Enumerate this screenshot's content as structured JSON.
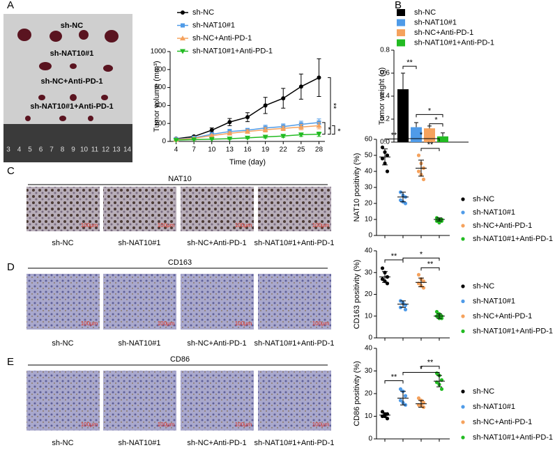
{
  "panels": [
    "A",
    "B",
    "C",
    "D",
    "E"
  ],
  "photo": {
    "labels": [
      "sh-NC",
      "sh-NAT10#1",
      "sh-NC+Anti-PD-1",
      "sh-NAT10#1+Anti-PD-1"
    ],
    "ruler": [
      "3",
      "4",
      "5",
      "6",
      "7",
      "8",
      "9",
      "10",
      "11",
      "12",
      "13",
      "14"
    ]
  },
  "images": [
    {
      "title": "NAT10",
      "labels": [
        "sh-NC",
        "sh-NAT10#1",
        "sh-NC+Anti-PD-1",
        "sh-NAT10#1+Anti-PD-1"
      ],
      "scale": "100μm"
    },
    {
      "title": "CD163",
      "labels": [
        "sh-NC",
        "sh-NAT10#1",
        "sh-NC+Anti-PD-1",
        "sh-NAT10#1+Anti-PD-1"
      ],
      "scale": "100μm"
    },
    {
      "title": "CD86",
      "labels": [
        "sh-NC",
        "sh-NAT10#1",
        "sh-NC+Anti-PD-1",
        "sh-NAT10#1+Anti-PD-1"
      ],
      "scale": "100μm"
    }
  ],
  "chart_data": [
    {
      "type": "line",
      "xlabel": "Time (day)",
      "ylabel": "Tumor volume (mm³)",
      "x": [
        4,
        7,
        10,
        13,
        16,
        19,
        22,
        25,
        28
      ],
      "xlim": [
        3,
        29
      ],
      "xticks": [
        4,
        7,
        10,
        13,
        16,
        19,
        22,
        25,
        28
      ],
      "ylim": [
        0,
        1000
      ],
      "yticks": [
        0,
        200,
        400,
        600,
        800,
        1000
      ],
      "series": [
        {
          "name": "sh-NC",
          "color": "#000000",
          "marker": "circle",
          "values": [
            30,
            55,
            125,
            215,
            270,
            400,
            480,
            610,
            710
          ],
          "errors": [
            5,
            10,
            25,
            40,
            50,
            90,
            110,
            140,
            210
          ]
        },
        {
          "name": "sh-NAT10#1",
          "color": "#4f9be8",
          "marker": "square",
          "values": [
            25,
            40,
            80,
            110,
            125,
            150,
            165,
            190,
            210
          ],
          "errors": [
            5,
            8,
            15,
            25,
            20,
            30,
            30,
            35,
            40
          ]
        },
        {
          "name": "sh-NC+Anti-PD-1",
          "color": "#f5a25d",
          "marker": "triangle",
          "values": [
            20,
            35,
            65,
            90,
            110,
            130,
            145,
            160,
            175
          ],
          "errors": [
            4,
            7,
            12,
            18,
            20,
            25,
            25,
            30,
            35
          ]
        },
        {
          "name": "sh-NAT10#1+Anti-PD-1",
          "color": "#22bb22",
          "marker": "down",
          "values": [
            15,
            20,
            25,
            30,
            40,
            50,
            60,
            75,
            80
          ],
          "errors": [
            3,
            4,
            5,
            8,
            10,
            12,
            15,
            20,
            25
          ]
        }
      ],
      "annotations": [
        "**",
        "*",
        "*"
      ]
    },
    {
      "type": "bar",
      "ylabel": "Tumor weight (g)",
      "ylim": [
        0,
        0.8
      ],
      "yticks": [
        {
          "value": 0,
          "label": "0.0"
        },
        0.2,
        0.4,
        0.6,
        0.8
      ],
      "series": [
        {
          "name": "sh-NC",
          "color": "#000000",
          "values": [
            0.46
          ],
          "errors": [
            0.14
          ]
        },
        {
          "name": "sh-NAT10#1",
          "color": "#4f9be8",
          "values": [
            0.13
          ],
          "errors": [
            0.04
          ]
        },
        {
          "name": "sh-NC+Anti-PD-1",
          "color": "#f5a25d",
          "values": [
            0.12
          ],
          "errors": [
            0.02
          ]
        },
        {
          "name": "sh-NAT10#1+Anti-PD-1",
          "color": "#22bb22",
          "values": [
            0.05
          ],
          "errors": [
            0.03
          ]
        }
      ],
      "annotations": [
        "**",
        "*",
        "*"
      ]
    },
    {
      "type": "dot",
      "ylabel": "NAT10 positivity (%)",
      "ylim": [
        0,
        60
      ],
      "yticks": [
        0,
        10,
        20,
        30,
        40,
        50,
        60
      ],
      "series": [
        {
          "name": "sh-NC",
          "color": "#000000",
          "values": [
            55,
            52,
            50,
            48,
            45,
            40
          ],
          "mean": 49,
          "error": 5
        },
        {
          "name": "sh-NAT10#1",
          "color": "#4f9be8",
          "values": [
            27,
            25,
            24,
            22,
            21,
            20
          ],
          "mean": 24,
          "error": 3
        },
        {
          "name": "sh-NC+Anti-PD-1",
          "color": "#f5a25d",
          "values": [
            50,
            45,
            42,
            40,
            38,
            35
          ],
          "mean": 42,
          "error": 5
        },
        {
          "name": "sh-NAT10#1+Anti-PD-1",
          "color": "#22bb22",
          "values": [
            11,
            10,
            9,
            9,
            8,
            10
          ],
          "mean": 10,
          "error": 1
        }
      ],
      "annotations": [
        "**",
        "*",
        "**"
      ]
    },
    {
      "type": "dot",
      "ylabel": "CD163 positivity (%)",
      "ylim": [
        0,
        40
      ],
      "yticks": [
        0,
        10,
        20,
        30,
        40
      ],
      "series": [
        {
          "name": "sh-NC",
          "color": "#000000",
          "values": [
            32,
            30,
            28,
            27,
            26,
            25
          ],
          "mean": 28,
          "error": 2.5
        },
        {
          "name": "sh-NAT10#1",
          "color": "#4f9be8",
          "values": [
            17,
            16,
            15,
            14,
            16,
            13
          ],
          "mean": 15.5,
          "error": 1.5
        },
        {
          "name": "sh-NC+Anti-PD-1",
          "color": "#f5a25d",
          "values": [
            29,
            27,
            26,
            25,
            24,
            23
          ],
          "mean": 25.5,
          "error": 2
        },
        {
          "name": "sh-NAT10#1+Anti-PD-1",
          "color": "#22bb22",
          "values": [
            12,
            11,
            10,
            10,
            9,
            9
          ],
          "mean": 10,
          "error": 1
        }
      ],
      "annotations": [
        "**",
        "*",
        "**"
      ]
    },
    {
      "type": "dot",
      "ylabel": "CD86 positivity (%)",
      "ylim": [
        0,
        40
      ],
      "yticks": [
        0,
        10,
        20,
        30,
        40
      ],
      "series": [
        {
          "name": "sh-NC",
          "color": "#000000",
          "values": [
            12,
            11,
            11,
            10,
            10,
            9
          ],
          "mean": 10.5,
          "error": 1
        },
        {
          "name": "sh-NAT10#1",
          "color": "#4f9be8",
          "values": [
            22,
            21,
            19,
            17,
            16,
            15
          ],
          "mean": 18,
          "error": 3
        },
        {
          "name": "sh-NC+Anti-PD-1",
          "color": "#f5a25d",
          "values": [
            18,
            17,
            16,
            15,
            15,
            14
          ],
          "mean": 15.5,
          "error": 1.5
        },
        {
          "name": "sh-NAT10#1+Anti-PD-1",
          "color": "#22bb22",
          "values": [
            29,
            28,
            26,
            25,
            24,
            22
          ],
          "mean": 25.5,
          "error": 2.5
        }
      ],
      "annotations": [
        "**",
        "*",
        "**"
      ]
    }
  ]
}
